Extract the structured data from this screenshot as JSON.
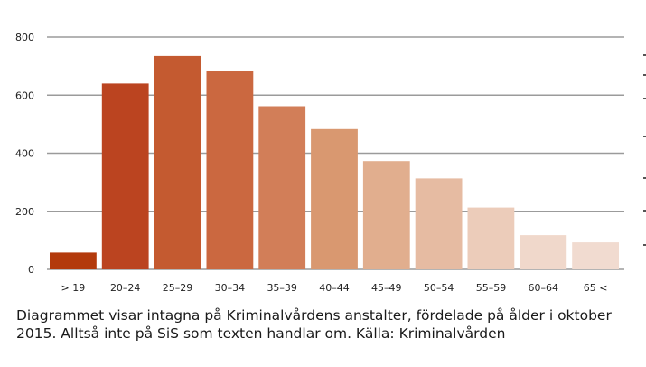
{
  "chart_data": {
    "type": "bar",
    "title": "",
    "xlabel": "",
    "ylabel": "",
    "categories": [
      "> 19",
      "20–24",
      "25–29",
      "30–34",
      "35–39",
      "40–44",
      "45–49",
      "50–54",
      "55–59",
      "60–64",
      "65 <"
    ],
    "values": [
      58,
      640,
      735,
      683,
      562,
      483,
      373,
      313,
      213,
      118,
      93
    ],
    "ylim": [
      0,
      800
    ],
    "yticks": [
      "0",
      "200",
      "400",
      "600",
      "800"
    ],
    "grid": true,
    "legend": "none",
    "colors": [
      "#b33a0c",
      "#bb4420",
      "#c45a30",
      "#cb6840",
      "#d27e58",
      "#d99870",
      "#e1ae8e",
      "#e6bba2",
      "#ecccba",
      "#f0d8cb",
      "#f1dbd0"
    ]
  },
  "caption": {
    "text": "Diagrammet visar intagna på Kriminalvårdens anstalter, fördelade på ålder i oktober 2015. Alltså inte på SiS som texten handlar om. Källa: Kriminalvården"
  },
  "style": {
    "grid_color": "#9b9b9b",
    "text_color": "#222222"
  }
}
